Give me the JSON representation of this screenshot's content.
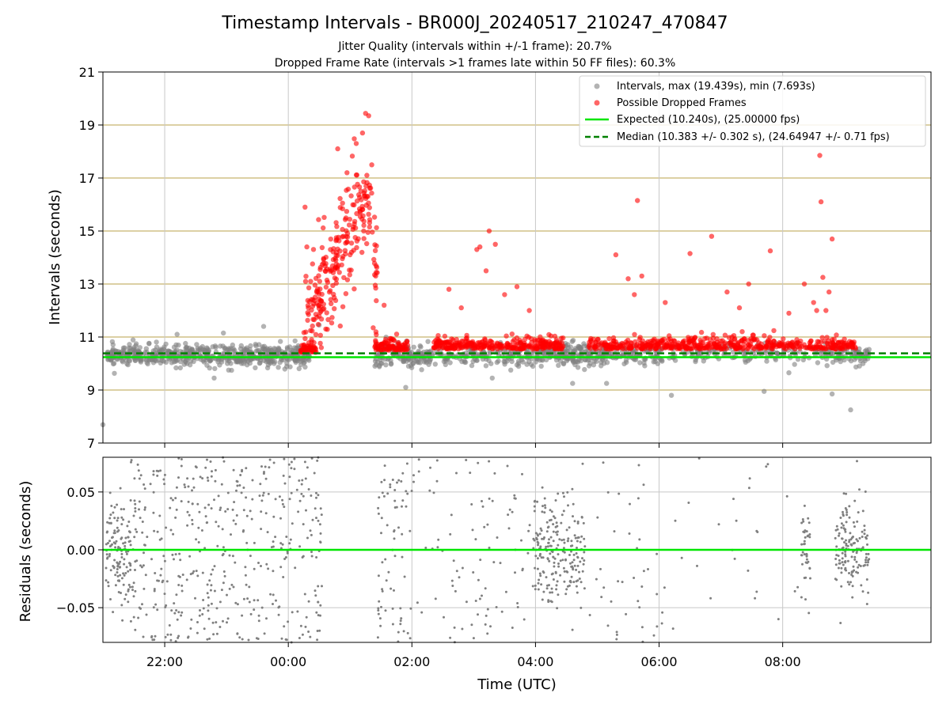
{
  "figure": {
    "title": "Timestamp Intervals - BR000J_20240517_210247_470847",
    "subtitle_1": "Jitter Quality (intervals within +/-1 frame): 20.7%",
    "subtitle_2": "Dropped Frame Rate (intervals >1 frames late within 50 FF files): 60.3%",
    "colors": {
      "intervals": "#808080",
      "dropped": "#ff0000",
      "expected": "#00e600",
      "median": "#008000",
      "hgrid": "#c8b46e",
      "vgrid": "#c8c8c8"
    }
  },
  "chart_data": [
    {
      "type": "scatter",
      "name": "intervals-panel",
      "xlabel": "",
      "ylabel": "Intervals (seconds)",
      "x_unit": "hours relative to 00:00 UTC",
      "xlim": [
        -3.0,
        10.4
      ],
      "ylim": [
        7,
        21
      ],
      "yticks": [
        7,
        9,
        11,
        13,
        15,
        17,
        19,
        21
      ],
      "ytick_labels": [
        "7",
        "9",
        "11",
        "13",
        "15",
        "17",
        "19",
        "21"
      ],
      "xticks": [
        -2,
        0,
        2,
        4,
        6,
        8
      ],
      "grid": {
        "horizontal": true,
        "vertical": true
      },
      "legend_position": "top-right",
      "legend": [
        "Intervals, max (19.439s), min (7.693s)",
        "Possible Dropped Frames",
        "Expected (10.240s), (25.00000 fps)",
        "Median (10.383 +/- 0.302 s), (24.64947 +/- 0.71 fps)"
      ],
      "reference_lines": {
        "expected": 10.24,
        "median": 10.383
      },
      "series": [
        {
          "name": "Intervals, max (19.439s), min (7.693s)",
          "clusters": [
            {
              "x_range": [
                -2.95,
                -2.85
              ],
              "center": 10.3,
              "spread": 0.2,
              "count": 20
            },
            {
              "x_range": [
                -2.85,
                0.35
              ],
              "center": 10.3,
              "spread": 0.35,
              "count": 560
            },
            {
              "x_range": [
                1.4,
                2.4
              ],
              "center": 10.3,
              "spread": 0.4,
              "count": 150
            },
            {
              "x_range": [
                2.4,
                4.1
              ],
              "center": 10.3,
              "spread": 0.35,
              "count": 160
            },
            {
              "x_range": [
                4.1,
                4.9
              ],
              "center": 10.35,
              "spread": 0.4,
              "count": 140
            },
            {
              "x_range": [
                4.9,
                6.1
              ],
              "center": 10.3,
              "spread": 0.35,
              "count": 120
            },
            {
              "x_range": [
                6.1,
                8.7
              ],
              "center": 10.4,
              "spread": 0.3,
              "count": 150
            },
            {
              "x_range": [
                8.7,
                9.4
              ],
              "center": 10.3,
              "spread": 0.3,
              "count": 80
            }
          ],
          "outliers": [
            {
              "x": -3.0,
              "y": 7.693
            },
            {
              "x": -1.05,
              "y": 11.15
            },
            {
              "x": -1.2,
              "y": 9.45
            },
            {
              "x": 0.5,
              "y": 11.45
            },
            {
              "x": 1.9,
              "y": 9.1
            },
            {
              "x": 3.3,
              "y": 9.45
            },
            {
              "x": 4.6,
              "y": 9.25
            },
            {
              "x": 5.15,
              "y": 9.25
            },
            {
              "x": 6.2,
              "y": 8.8
            },
            {
              "x": 7.7,
              "y": 8.95
            },
            {
              "x": 8.1,
              "y": 9.65
            },
            {
              "x": 8.8,
              "y": 8.85
            },
            {
              "x": 9.1,
              "y": 8.25
            },
            {
              "x": -1.8,
              "y": 11.1
            },
            {
              "x": -0.4,
              "y": 11.4
            }
          ]
        },
        {
          "name": "Possible Dropped Frames",
          "clusters": [
            {
              "x_range": [
                0.2,
                0.45
              ],
              "center": 10.5,
              "spread": 0.3,
              "count": 40
            },
            {
              "x_range": [
                1.4,
                1.95
              ],
              "center": 10.6,
              "spread": 0.35,
              "count": 90
            },
            {
              "x_range": [
                2.35,
                4.45
              ],
              "center": 10.65,
              "spread": 0.35,
              "count": 300
            },
            {
              "x_range": [
                4.85,
                9.2
              ],
              "center": 10.65,
              "spread": 0.35,
              "count": 520
            }
          ],
          "burst": {
            "x_range": [
              0.25,
              1.45
            ],
            "y_range": [
              10.8,
              16.8
            ],
            "count": 260
          },
          "outliers": [
            {
              "x": 0.27,
              "y": 15.9
            },
            {
              "x": 0.3,
              "y": 14.4
            },
            {
              "x": 0.28,
              "y": 13.1
            },
            {
              "x": 0.8,
              "y": 18.1
            },
            {
              "x": 0.95,
              "y": 17.2
            },
            {
              "x": 1.1,
              "y": 18.3
            },
            {
              "x": 1.2,
              "y": 18.7
            },
            {
              "x": 1.25,
              "y": 19.439
            },
            {
              "x": 1.3,
              "y": 19.35
            },
            {
              "x": 1.35,
              "y": 17.5
            },
            {
              "x": 1.22,
              "y": 15.0
            },
            {
              "x": 1.55,
              "y": 12.2
            },
            {
              "x": 2.6,
              "y": 12.8
            },
            {
              "x": 2.8,
              "y": 12.1
            },
            {
              "x": 3.05,
              "y": 14.3
            },
            {
              "x": 3.1,
              "y": 14.4
            },
            {
              "x": 3.2,
              "y": 13.5
            },
            {
              "x": 3.25,
              "y": 15.0
            },
            {
              "x": 3.35,
              "y": 14.5
            },
            {
              "x": 3.5,
              "y": 12.6
            },
            {
              "x": 3.7,
              "y": 12.9
            },
            {
              "x": 3.9,
              "y": 12.0
            },
            {
              "x": 5.3,
              "y": 14.1
            },
            {
              "x": 5.5,
              "y": 13.2
            },
            {
              "x": 5.6,
              "y": 12.6
            },
            {
              "x": 5.65,
              "y": 16.15
            },
            {
              "x": 5.72,
              "y": 13.3
            },
            {
              "x": 6.1,
              "y": 12.3
            },
            {
              "x": 6.5,
              "y": 14.15
            },
            {
              "x": 6.85,
              "y": 14.8
            },
            {
              "x": 7.1,
              "y": 12.7
            },
            {
              "x": 7.3,
              "y": 12.1
            },
            {
              "x": 7.45,
              "y": 13.0
            },
            {
              "x": 7.8,
              "y": 14.25
            },
            {
              "x": 8.1,
              "y": 11.9
            },
            {
              "x": 8.35,
              "y": 13.0
            },
            {
              "x": 8.55,
              "y": 12.0
            },
            {
              "x": 8.6,
              "y": 17.85
            },
            {
              "x": 8.62,
              "y": 16.1
            },
            {
              "x": 8.65,
              "y": 13.25
            },
            {
              "x": 8.8,
              "y": 14.7
            },
            {
              "x": 8.7,
              "y": 12.0
            },
            {
              "x": 8.5,
              "y": 12.3
            },
            {
              "x": 8.75,
              "y": 12.7
            }
          ]
        }
      ]
    },
    {
      "type": "scatter",
      "name": "residuals-panel",
      "xlabel": "Time (UTC)",
      "ylabel": "Residuals (seconds)",
      "x_unit": "hours relative to 00:00 UTC",
      "xlim": [
        -3.0,
        10.4
      ],
      "ylim": [
        -0.08,
        0.08
      ],
      "yticks": [
        -0.05,
        0.0,
        0.05
      ],
      "ytick_labels": [
        "−0.05",
        "0.00",
        "0.05"
      ],
      "xticks": [
        -2,
        0,
        2,
        4,
        6,
        8
      ],
      "xtick_labels": [
        "22:00",
        "00:00",
        "02:00",
        "04:00",
        "06:00",
        "08:00"
      ],
      "grid": {
        "horizontal": true,
        "vertical": true
      },
      "reference_lines": {
        "zero": 0.0
      },
      "series": [
        {
          "name": "residuals",
          "clusters": [
            {
              "x_range": [
                -2.95,
                -2.55
              ],
              "center": 0.0,
              "spread": 0.045,
              "count": 130
            },
            {
              "x_range": [
                -2.55,
                0.55
              ],
              "center": 0.0,
              "spread": 0.085,
              "count": 450
            },
            {
              "x_range": [
                1.45,
                2.0
              ],
              "center": 0.0,
              "spread": 0.085,
              "count": 70
            },
            {
              "x_range": [
                2.0,
                3.95
              ],
              "center": 0.0,
              "spread": 0.085,
              "count": 90
            },
            {
              "x_range": [
                3.95,
                4.8
              ],
              "center": 0.0,
              "spread": 0.05,
              "count": 220
            },
            {
              "x_range": [
                4.8,
                6.1
              ],
              "center": 0.0,
              "spread": 0.085,
              "count": 40
            },
            {
              "x_range": [
                6.1,
                8.3
              ],
              "center": 0.0,
              "spread": 0.085,
              "count": 25
            },
            {
              "x_range": [
                8.3,
                8.45
              ],
              "center": 0.0,
              "spread": 0.04,
              "count": 40
            },
            {
              "x_range": [
                8.85,
                9.4
              ],
              "center": 0.0,
              "spread": 0.045,
              "count": 150
            }
          ]
        }
      ]
    }
  ]
}
